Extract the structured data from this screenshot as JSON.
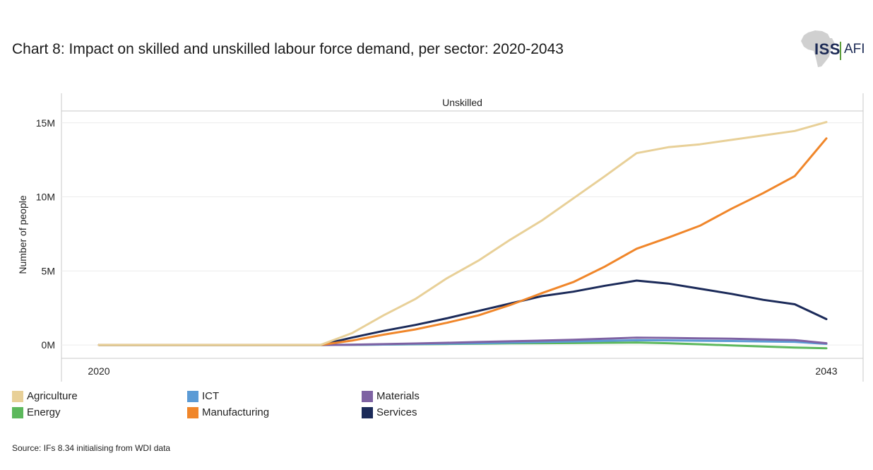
{
  "title": "Chart 8: Impact on skilled and unskilled labour force demand, per sector: 2020-2043",
  "logo": {
    "primary": "ISS",
    "secondary": "AFI"
  },
  "source": "Source: IFs 8.34 initialising from WDI data",
  "chart_data": {
    "type": "line",
    "panel_title": "Unskilled",
    "ylabel": "Number of people",
    "xlabel": "",
    "x_tick_labels": [
      "2020",
      "2043"
    ],
    "y_ticks": [
      0,
      5000000,
      10000000,
      15000000
    ],
    "y_tick_labels": [
      "0M",
      "5M",
      "10M",
      "15M"
    ],
    "ylim": [
      -900000,
      15800000
    ],
    "x": [
      2020,
      2021,
      2022,
      2023,
      2024,
      2025,
      2026,
      2027,
      2028,
      2029,
      2030,
      2031,
      2032,
      2033,
      2034,
      2035,
      2036,
      2037,
      2038,
      2039,
      2040,
      2041,
      2042,
      2043
    ],
    "grid": true,
    "legend_position": "bottom",
    "series": [
      {
        "name": "Agriculture",
        "color": "#e8d098",
        "values": [
          0,
          0,
          0,
          0,
          0,
          0,
          0,
          0,
          800000,
          2000000,
          3100000,
          4500000,
          5700000,
          7100000,
          8400000,
          9900000,
          11400000,
          12950000,
          13350000,
          13550000,
          13850000,
          14150000,
          14450000,
          15050000
        ]
      },
      {
        "name": "Manufacturing",
        "color": "#f0862a",
        "values": [
          0,
          0,
          0,
          0,
          0,
          0,
          0,
          0,
          300000,
          700000,
          1050000,
          1500000,
          2000000,
          2700000,
          3500000,
          4250000,
          5300000,
          6500000,
          7250000,
          8050000,
          9200000,
          10250000,
          11400000,
          13950000
        ]
      },
      {
        "name": "Services",
        "color": "#1b2a59",
        "values": [
          0,
          0,
          0,
          0,
          0,
          0,
          0,
          0,
          500000,
          950000,
          1350000,
          1800000,
          2300000,
          2800000,
          3300000,
          3600000,
          4000000,
          4350000,
          4150000,
          3800000,
          3450000,
          3050000,
          2750000,
          1750000
        ]
      },
      {
        "name": "Materials",
        "color": "#7e62a3",
        "values": [
          0,
          0,
          0,
          0,
          0,
          0,
          0,
          0,
          20000,
          60000,
          100000,
          150000,
          200000,
          250000,
          300000,
          350000,
          420000,
          500000,
          480000,
          450000,
          420000,
          380000,
          330000,
          120000
        ]
      },
      {
        "name": "ICT",
        "color": "#5b9bd5",
        "values": [
          0,
          0,
          0,
          0,
          0,
          0,
          0,
          0,
          10000,
          30000,
          60000,
          90000,
          120000,
          160000,
          200000,
          240000,
          280000,
          320000,
          310000,
          290000,
          270000,
          240000,
          210000,
          80000
        ]
      },
      {
        "name": "Energy",
        "color": "#5cb85c",
        "values": [
          0,
          0,
          0,
          0,
          0,
          0,
          0,
          0,
          10000,
          30000,
          50000,
          70000,
          90000,
          110000,
          120000,
          130000,
          150000,
          170000,
          120000,
          50000,
          -30000,
          -100000,
          -170000,
          -220000
        ]
      }
    ]
  },
  "legend": [
    {
      "label": "Agriculture",
      "color": "#e8d098"
    },
    {
      "label": "Energy",
      "color": "#5cb85c"
    },
    {
      "label": "ICT",
      "color": "#5b9bd5"
    },
    {
      "label": "Manufacturing",
      "color": "#f0862a"
    },
    {
      "label": "Materials",
      "color": "#7e62a3"
    },
    {
      "label": "Services",
      "color": "#1b2a59"
    }
  ]
}
